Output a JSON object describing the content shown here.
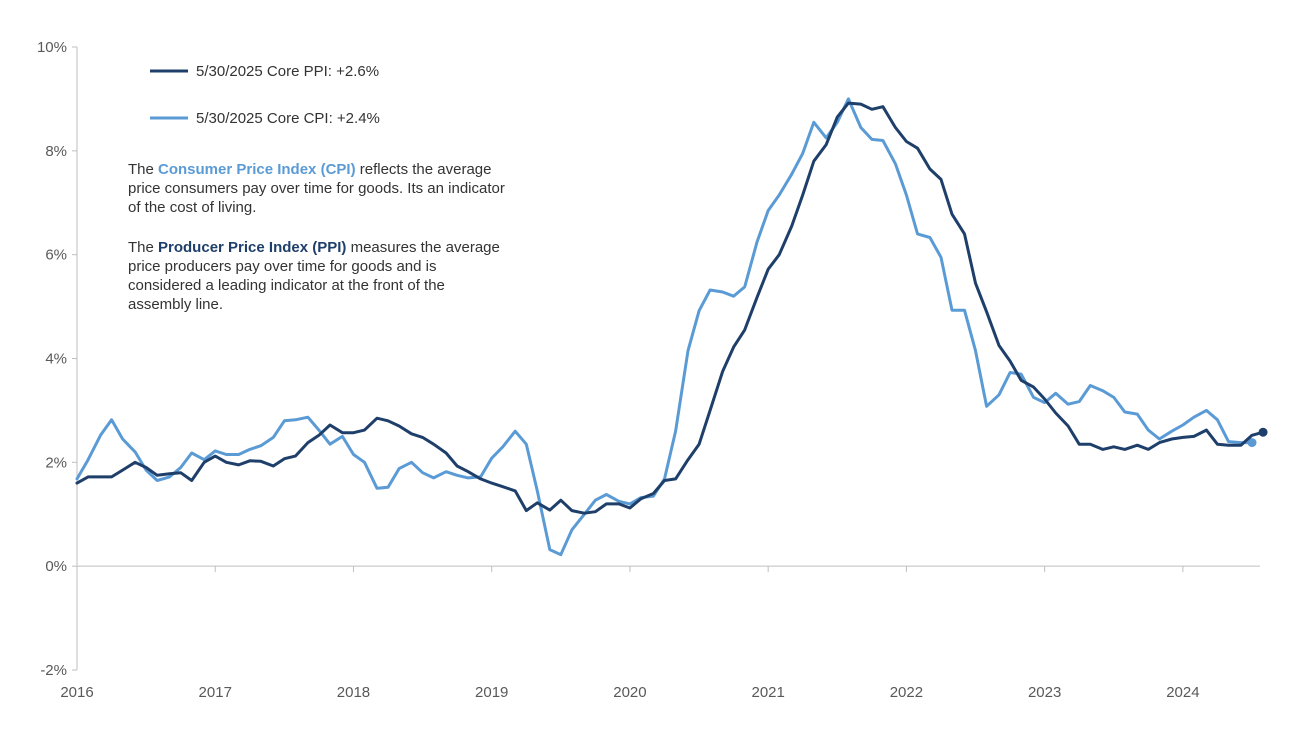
{
  "colors": {
    "ppi": "#1f3f6b",
    "cpi": "#5b9bd5",
    "axis": "#bfbfbf",
    "text": "#333333"
  },
  "legend": {
    "ppi_label": "5/30/2025 Core PPI:  +2.6%",
    "cpi_label": "5/30/2025 Core CPI:  +2.4%"
  },
  "notes": {
    "cpi_prefix": "The ",
    "cpi_term": "Consumer Price Index (CPI)",
    "cpi_rest": " reflects the average price consumers pay over time for goods. Its an indicator of the cost of living.",
    "ppi_prefix": "The ",
    "ppi_term": "Producer Price Index (PPI)",
    "ppi_rest": " measures the average price producers pay over time for goods and is considered a leading indicator at the front of the assembly line."
  },
  "chart_data": {
    "type": "line",
    "title": "",
    "xlabel": "",
    "ylabel": "",
    "ylim": [
      -2,
      10
    ],
    "xlim": [
      2016,
      2024.58
    ],
    "y_ticks": [
      -2,
      0,
      2,
      4,
      6,
      8,
      10
    ],
    "y_tick_labels": [
      "-2%",
      "0%",
      "2%",
      "4%",
      "6%",
      "8%",
      "10%"
    ],
    "x_ticks": [
      2016,
      2017,
      2018,
      2019,
      2020,
      2021,
      2022,
      2023,
      2024
    ],
    "x_tick_labels": [
      "2016",
      "2017",
      "2018",
      "2019",
      "2020",
      "2021",
      "2022",
      "2023",
      "2024"
    ],
    "grid": false,
    "legend_position": "top-left",
    "series": [
      {
        "name": "5/30/2025 Core PPI:  +2.6%",
        "points": [
          [
            2016.0,
            1.6
          ],
          [
            2016.08,
            1.72
          ],
          [
            2016.17,
            1.72
          ],
          [
            2016.25,
            1.72
          ],
          [
            2016.33,
            1.85
          ],
          [
            2016.42,
            2.0
          ],
          [
            2016.5,
            1.9
          ],
          [
            2016.58,
            1.75
          ],
          [
            2016.67,
            1.78
          ],
          [
            2016.75,
            1.8
          ],
          [
            2016.83,
            1.65
          ],
          [
            2016.92,
            2.0
          ],
          [
            2017.0,
            2.12
          ],
          [
            2017.08,
            2.0
          ],
          [
            2017.17,
            1.95
          ],
          [
            2017.25,
            2.03
          ],
          [
            2017.33,
            2.02
          ],
          [
            2017.42,
            1.93
          ],
          [
            2017.5,
            2.07
          ],
          [
            2017.58,
            2.12
          ],
          [
            2017.67,
            2.38
          ],
          [
            2017.75,
            2.52
          ],
          [
            2017.83,
            2.72
          ],
          [
            2017.92,
            2.57
          ],
          [
            2018.0,
            2.57
          ],
          [
            2018.08,
            2.62
          ],
          [
            2018.17,
            2.85
          ],
          [
            2018.25,
            2.8
          ],
          [
            2018.33,
            2.7
          ],
          [
            2018.42,
            2.55
          ],
          [
            2018.5,
            2.48
          ],
          [
            2018.58,
            2.35
          ],
          [
            2018.67,
            2.18
          ],
          [
            2018.75,
            1.93
          ],
          [
            2018.83,
            1.82
          ],
          [
            2018.92,
            1.68
          ],
          [
            2019.0,
            1.6
          ],
          [
            2019.08,
            1.53
          ],
          [
            2019.17,
            1.45
          ],
          [
            2019.25,
            1.07
          ],
          [
            2019.33,
            1.22
          ],
          [
            2019.42,
            1.08
          ],
          [
            2019.5,
            1.27
          ],
          [
            2019.58,
            1.07
          ],
          [
            2019.67,
            1.02
          ],
          [
            2019.75,
            1.05
          ],
          [
            2019.83,
            1.2
          ],
          [
            2019.92,
            1.2
          ],
          [
            2020.0,
            1.12
          ],
          [
            2020.08,
            1.3
          ],
          [
            2020.17,
            1.4
          ],
          [
            2020.25,
            1.65
          ],
          [
            2020.33,
            1.68
          ],
          [
            2020.42,
            2.05
          ],
          [
            2020.5,
            2.35
          ],
          [
            2020.58,
            3.0
          ],
          [
            2020.67,
            3.75
          ],
          [
            2020.75,
            4.22
          ],
          [
            2020.83,
            4.55
          ],
          [
            2020.92,
            5.18
          ],
          [
            2021.0,
            5.72
          ],
          [
            2021.08,
            6.0
          ],
          [
            2021.17,
            6.55
          ],
          [
            2021.25,
            7.15
          ],
          [
            2021.33,
            7.8
          ],
          [
            2021.42,
            8.12
          ],
          [
            2021.5,
            8.65
          ],
          [
            2021.58,
            8.92
          ],
          [
            2021.67,
            8.9
          ],
          [
            2021.75,
            8.8
          ],
          [
            2021.83,
            8.85
          ],
          [
            2021.92,
            8.45
          ],
          [
            2022.0,
            8.18
          ],
          [
            2022.08,
            8.05
          ],
          [
            2022.17,
            7.65
          ],
          [
            2022.25,
            7.45
          ],
          [
            2022.33,
            6.78
          ],
          [
            2022.42,
            6.4
          ],
          [
            2022.5,
            5.45
          ],
          [
            2022.58,
            4.9
          ],
          [
            2022.67,
            4.25
          ],
          [
            2022.75,
            3.95
          ],
          [
            2022.83,
            3.58
          ],
          [
            2022.92,
            3.45
          ],
          [
            2023.0,
            3.22
          ],
          [
            2023.08,
            2.95
          ],
          [
            2023.17,
            2.7
          ],
          [
            2023.25,
            2.35
          ],
          [
            2023.33,
            2.35
          ],
          [
            2023.42,
            2.25
          ],
          [
            2023.5,
            2.3
          ],
          [
            2023.58,
            2.25
          ],
          [
            2023.67,
            2.33
          ],
          [
            2023.75,
            2.25
          ],
          [
            2023.83,
            2.38
          ],
          [
            2023.92,
            2.45
          ],
          [
            2024.0,
            2.48
          ],
          [
            2024.08,
            2.5
          ],
          [
            2024.17,
            2.62
          ],
          [
            2024.25,
            2.35
          ],
          [
            2024.33,
            2.33
          ],
          [
            2024.42,
            2.33
          ],
          [
            2024.5,
            2.52
          ],
          [
            2024.58,
            2.58
          ]
        ]
      },
      {
        "name": "5/30/2025 Core CPI:  +2.4%",
        "points": [
          [
            2016.0,
            1.68
          ],
          [
            2016.08,
            2.05
          ],
          [
            2016.17,
            2.52
          ],
          [
            2016.25,
            2.82
          ],
          [
            2016.33,
            2.45
          ],
          [
            2016.42,
            2.2
          ],
          [
            2016.5,
            1.85
          ],
          [
            2016.58,
            1.65
          ],
          [
            2016.67,
            1.72
          ],
          [
            2016.75,
            1.9
          ],
          [
            2016.83,
            2.18
          ],
          [
            2016.92,
            2.05
          ],
          [
            2017.0,
            2.22
          ],
          [
            2017.08,
            2.15
          ],
          [
            2017.17,
            2.15
          ],
          [
            2017.25,
            2.25
          ],
          [
            2017.33,
            2.32
          ],
          [
            2017.42,
            2.48
          ],
          [
            2017.5,
            2.8
          ],
          [
            2017.58,
            2.82
          ],
          [
            2017.67,
            2.87
          ],
          [
            2017.75,
            2.62
          ],
          [
            2017.83,
            2.35
          ],
          [
            2017.92,
            2.5
          ],
          [
            2018.0,
            2.15
          ],
          [
            2018.08,
            2.0
          ],
          [
            2018.17,
            1.5
          ],
          [
            2018.25,
            1.52
          ],
          [
            2018.33,
            1.88
          ],
          [
            2018.42,
            2.0
          ],
          [
            2018.5,
            1.8
          ],
          [
            2018.58,
            1.7
          ],
          [
            2018.67,
            1.82
          ],
          [
            2018.75,
            1.75
          ],
          [
            2018.83,
            1.7
          ],
          [
            2018.92,
            1.72
          ],
          [
            2019.0,
            2.08
          ],
          [
            2019.08,
            2.3
          ],
          [
            2019.17,
            2.6
          ],
          [
            2019.25,
            2.35
          ],
          [
            2019.33,
            1.45
          ],
          [
            2019.42,
            0.32
          ],
          [
            2019.5,
            0.22
          ],
          [
            2019.58,
            0.7
          ],
          [
            2019.67,
            1.0
          ],
          [
            2019.75,
            1.27
          ],
          [
            2019.83,
            1.38
          ],
          [
            2019.92,
            1.25
          ],
          [
            2020.0,
            1.2
          ],
          [
            2020.08,
            1.32
          ],
          [
            2020.17,
            1.35
          ],
          [
            2020.25,
            1.68
          ],
          [
            2020.33,
            2.6
          ],
          [
            2020.42,
            4.15
          ],
          [
            2020.5,
            4.92
          ],
          [
            2020.58,
            5.32
          ],
          [
            2020.67,
            5.28
          ],
          [
            2020.75,
            5.2
          ],
          [
            2020.83,
            5.38
          ],
          [
            2020.92,
            6.25
          ],
          [
            2021.0,
            6.85
          ],
          [
            2021.08,
            7.15
          ],
          [
            2021.17,
            7.55
          ],
          [
            2021.25,
            7.95
          ],
          [
            2021.33,
            8.55
          ],
          [
            2021.42,
            8.25
          ],
          [
            2021.5,
            8.55
          ],
          [
            2021.58,
            9.0
          ],
          [
            2021.67,
            8.45
          ],
          [
            2021.75,
            8.22
          ],
          [
            2021.83,
            8.2
          ],
          [
            2021.92,
            7.75
          ],
          [
            2022.0,
            7.15
          ],
          [
            2022.08,
            6.4
          ],
          [
            2022.17,
            6.33
          ],
          [
            2022.25,
            5.95
          ],
          [
            2022.33,
            4.93
          ],
          [
            2022.42,
            4.93
          ],
          [
            2022.5,
            4.15
          ],
          [
            2022.58,
            3.08
          ],
          [
            2022.67,
            3.3
          ],
          [
            2022.75,
            3.73
          ],
          [
            2022.83,
            3.7
          ],
          [
            2022.92,
            3.25
          ],
          [
            2023.0,
            3.15
          ],
          [
            2023.08,
            3.33
          ],
          [
            2023.17,
            3.12
          ],
          [
            2023.25,
            3.17
          ],
          [
            2023.33,
            3.48
          ],
          [
            2023.42,
            3.38
          ],
          [
            2023.5,
            3.25
          ],
          [
            2023.58,
            2.97
          ],
          [
            2023.67,
            2.93
          ],
          [
            2023.75,
            2.62
          ],
          [
            2023.83,
            2.45
          ],
          [
            2023.92,
            2.6
          ],
          [
            2024.0,
            2.72
          ],
          [
            2024.08,
            2.87
          ],
          [
            2024.17,
            3.0
          ],
          [
            2024.25,
            2.82
          ],
          [
            2024.33,
            2.4
          ],
          [
            2024.42,
            2.38
          ],
          [
            2024.5,
            2.38
          ]
        ]
      }
    ]
  }
}
